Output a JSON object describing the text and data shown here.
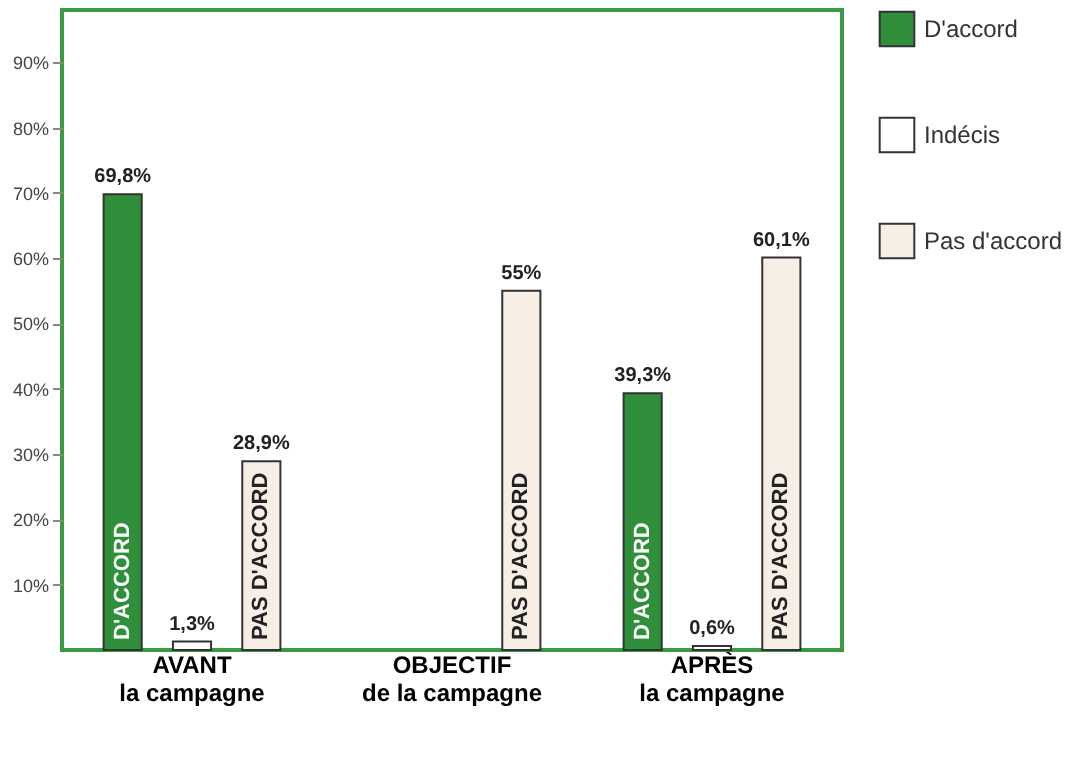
{
  "chart_data": {
    "type": "bar",
    "categories": [
      "AVANT\nla campagne",
      "OBJECTIF\nde la campagne",
      "APRÈS\nla campagne"
    ],
    "series": [
      {
        "name": "D'accord",
        "color": "#2f8f3a",
        "values": [
          69.8,
          null,
          39.3
        ],
        "value_labels": [
          "69,8%",
          null,
          "39,3%"
        ]
      },
      {
        "name": "Indécis",
        "color": "#ffffff",
        "values": [
          1.3,
          null,
          0.6
        ],
        "value_labels": [
          "1,3%",
          null,
          "0,6%"
        ]
      },
      {
        "name": "Pas d'accord",
        "color": "#f7eee6",
        "values": [
          28.9,
          55,
          60.1
        ],
        "value_labels": [
          "28,9%",
          "55%",
          "60,1%"
        ]
      }
    ],
    "ylim": [
      0,
      98
    ],
    "yticks": [
      {
        "value": 10,
        "label": "10%"
      },
      {
        "value": 20,
        "label": "20%"
      },
      {
        "value": 30,
        "label": "30%"
      },
      {
        "value": 40,
        "label": "40%"
      },
      {
        "value": 50,
        "label": "50%"
      },
      {
        "value": 60,
        "label": "60%"
      },
      {
        "value": 70,
        "label": "70%"
      },
      {
        "value": 80,
        "label": "80%"
      },
      {
        "value": 90,
        "label": "90%"
      }
    ],
    "annotations": [
      "D'ACCORD",
      "PAS D'ACCORD",
      "PAS D'ACCORD",
      "D'ACCORD",
      "PAS D'ACCORD"
    ],
    "grid": false,
    "legend": "right"
  }
}
